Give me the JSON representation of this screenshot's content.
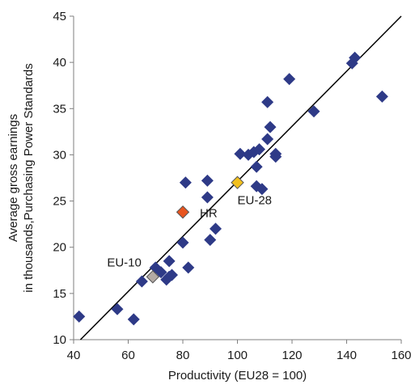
{
  "chart_data": {
    "type": "scatter",
    "xlabel": "Productivity (EU28 = 100)",
    "ylabel": [
      "Average gross earnings",
      "in thousands,Purchasing Power Standards"
    ],
    "xlim": [
      40,
      160
    ],
    "ylim": [
      10,
      45
    ],
    "xticks": [
      40,
      60,
      80,
      100,
      120,
      140,
      160
    ],
    "yticks": [
      10,
      15,
      20,
      25,
      30,
      35,
      40,
      45
    ],
    "grid": false,
    "legend": "none",
    "colors": {
      "country": "#2e3a87",
      "hr": "#e8551f",
      "eu28": "#f2c01e",
      "eu10": "#b3aaa4",
      "trend": "#000000",
      "axis": "#7f7f7f"
    },
    "series": [
      {
        "kind": "country",
        "points": [
          [
            42,
            12.5
          ],
          [
            56,
            13.3
          ],
          [
            62,
            12.2
          ],
          [
            65,
            16.3
          ],
          [
            70,
            17.8
          ],
          [
            72,
            17.3
          ],
          [
            74,
            16.5
          ],
          [
            75,
            16.8
          ],
          [
            75,
            18.5
          ],
          [
            76,
            17.0
          ],
          [
            80,
            20.5
          ],
          [
            81,
            27.0
          ],
          [
            82,
            17.8
          ],
          [
            89,
            27.2
          ],
          [
            89,
            25.4
          ],
          [
            90,
            20.8
          ],
          [
            92,
            22.0
          ],
          [
            101,
            30.1
          ],
          [
            104,
            30.0
          ],
          [
            106,
            30.3
          ],
          [
            107,
            26.6
          ],
          [
            107,
            28.7
          ],
          [
            108,
            30.6
          ],
          [
            109,
            26.3
          ],
          [
            111,
            35.7
          ],
          [
            111,
            31.7
          ],
          [
            112,
            33.0
          ],
          [
            114,
            29.8
          ],
          [
            114,
            30.1
          ],
          [
            119,
            38.2
          ],
          [
            128,
            34.7
          ],
          [
            142,
            39.9
          ],
          [
            143,
            40.5
          ],
          [
            153,
            36.3
          ]
        ]
      },
      {
        "kind": "hr",
        "label": "HR",
        "points": [
          [
            80,
            23.8
          ]
        ]
      },
      {
        "kind": "eu28",
        "label": "EU-28",
        "points": [
          [
            100,
            27.0
          ]
        ]
      },
      {
        "kind": "eu10",
        "label": "EU-10",
        "points": [
          [
            69,
            16.8
          ]
        ]
      }
    ],
    "trendline": [
      [
        42.5,
        10
      ],
      [
        160,
        45
      ]
    ]
  }
}
